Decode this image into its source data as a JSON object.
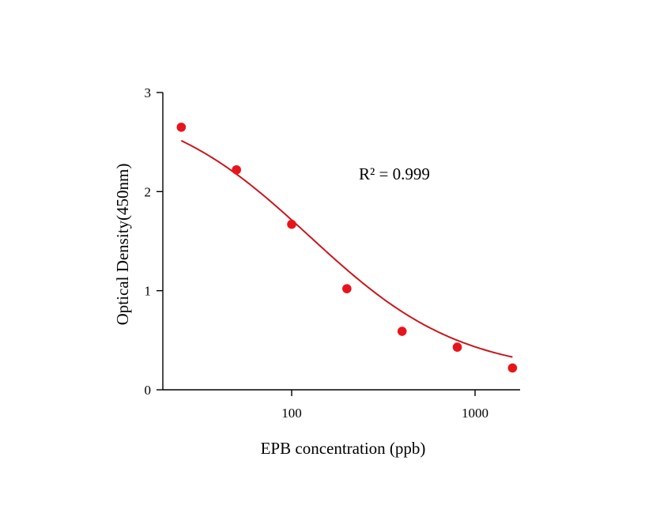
{
  "chart_data": {
    "type": "scatter",
    "title": "",
    "xlabel": "EPB concentration (ppb)",
    "ylabel": "Optical Density(450nm)",
    "x_scale": "log",
    "xlim": [
      20,
      1800
    ],
    "ylim": [
      0,
      3
    ],
    "x_ticks": [
      100,
      1000
    ],
    "x_tick_labels": [
      "100",
      "1000"
    ],
    "y_ticks": [
      0,
      1,
      2,
      3
    ],
    "y_tick_labels": [
      "0",
      "1",
      "2",
      "3"
    ],
    "grid": false,
    "legend": "none",
    "annotation": "R² = 0.999",
    "series": [
      {
        "points": [
          {
            "x": 25,
            "y": 2.65
          },
          {
            "x": 50,
            "y": 2.22
          },
          {
            "x": 100,
            "y": 1.67
          },
          {
            "x": 200,
            "y": 1.02
          },
          {
            "x": 400,
            "y": 0.59
          },
          {
            "x": 800,
            "y": 0.43
          },
          {
            "x": 1600,
            "y": 0.22
          }
        ],
        "fit": {
          "type": "4PL",
          "A": 2.95,
          "D": 0.15,
          "C": 125,
          "B": 1.05
        },
        "color": "#e8141b",
        "curve_color": "#c8171d"
      }
    ]
  }
}
